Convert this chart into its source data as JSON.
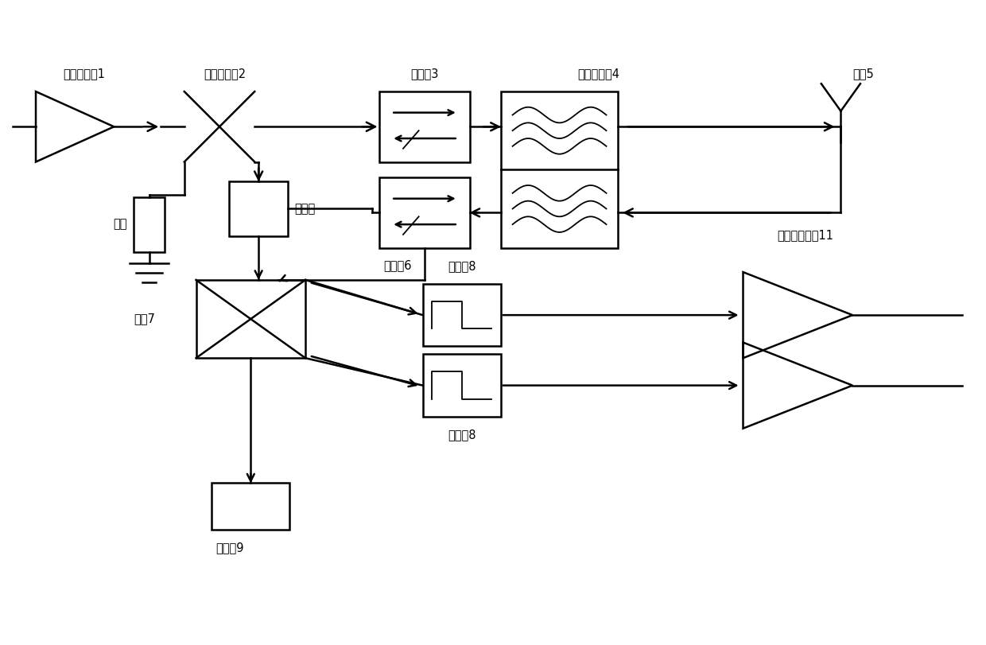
{
  "bg_color": "#ffffff",
  "line_color": "#000000",
  "labels": {
    "amp1": "功率放大器1",
    "coupler2": "正向耦合器2",
    "isolator3": "隔离器3",
    "filter4": "腔体滤波器4",
    "antenna5": "天线5",
    "load": "负载",
    "detector_top": "检波器",
    "isolator6": "隔离器6",
    "bridge7": "电桥7",
    "limiter8_top": "限幅器8",
    "limiter8_bot": "限幅器8",
    "lna11": "低噪声放大器11",
    "detector9": "检波器9"
  },
  "figsize": [
    12.4,
    8.11
  ],
  "dpi": 100
}
